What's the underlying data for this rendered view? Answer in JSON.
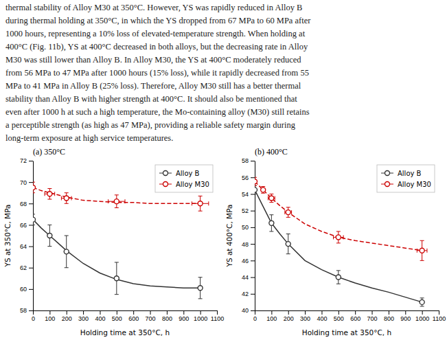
{
  "text_lines": [
    "thermal stability of Alloy M30 at 350°C. However, YS was rapidly reduced in Alloy B",
    "during thermal holding at 350°C, in which the YS dropped from 67 MPa to 60 MPa after",
    "1000 hours, representing a 10% loss of elevated-temperature strength. When holding at",
    "400°C (Fig. 11b), YS at 400°C decreased in both alloys, but the decreasing rate in Alloy",
    "M30 was still lower than Alloy B. In Alloy M30, the YS at 400°C moderately reduced",
    "from 56 MPa to 47 MPa after 1000 hours (15% loss), while it rapidly decreased from 55",
    "MPa to 41 MPa in Alloy B (25% loss). Therefore, Alloy M30 still has a better thermal",
    "stability than Alloy B with higher strength at 400°C. It should also be mentioned that",
    "even after 1000 h at such a high temperature, the Mo-containing alloy (M30) still retains",
    "a perceptible strength (as high as 47 MPa), providing a reliable safety margin during",
    "long-term exposure at high service temperatures."
  ],
  "chart_data": [
    {
      "type": "line",
      "title": "(a) 350°C",
      "x_label": "Holding time at 350°C, h",
      "y_label": "YS at 350°C, MPa",
      "xlim": [
        0,
        1100
      ],
      "xticks": [
        0,
        100,
        200,
        300,
        400,
        500,
        600,
        700,
        800,
        900,
        1000,
        1100
      ],
      "ylim": [
        58,
        72
      ],
      "yticks": [
        58,
        60,
        62,
        64,
        66,
        68,
        70,
        72
      ],
      "grid": false,
      "legend": "upper right",
      "series": [
        {
          "type": "line",
          "color": "#333333",
          "line_style": "solid",
          "x": [
            0,
            50,
            100,
            150,
            200,
            300,
            400,
            500,
            600,
            700,
            800,
            900,
            1000
          ],
          "values": [
            66.5,
            65.7,
            65.0,
            64.3,
            63.6,
            62.4,
            61.5,
            60.9,
            60.5,
            60.3,
            60.2,
            60.1,
            60.1
          ]
        },
        {
          "type": "line",
          "color": "#cc0000",
          "line_style": "dashed",
          "x": [
            0,
            50,
            100,
            150,
            200,
            300,
            400,
            500,
            600,
            700,
            800,
            900,
            1000
          ],
          "values": [
            69.5,
            69.2,
            69.0,
            68.8,
            68.6,
            68.3,
            68.2,
            68.1,
            68.1,
            68.0,
            68.0,
            68.0,
            68.0
          ]
        },
        {
          "type": "scatter",
          "name": "Alloy B",
          "color": "#333333",
          "marker": "circle",
          "x": [
            0,
            100,
            200,
            500,
            1000
          ],
          "values": [
            66.5,
            65.0,
            63.5,
            61.0,
            60.1
          ],
          "yerr": [
            0.5,
            1.0,
            1.5,
            1.5,
            1.0
          ]
        },
        {
          "type": "scatter",
          "name": "Alloy M30",
          "color": "#cc0000",
          "marker": "circle",
          "x": [
            0,
            100,
            200,
            500,
            1000
          ],
          "values": [
            69.5,
            68.9,
            68.5,
            68.2,
            68.0
          ],
          "yerr": [
            0.5,
            0.5,
            0.5,
            0.6,
            0.7
          ],
          "xerr": [
            0,
            30,
            30,
            50,
            50
          ]
        }
      ]
    },
    {
      "type": "line",
      "title": "(b) 400°C",
      "x_label": "Holding time at 350°C, h",
      "y_label": "YS at 400°C, MPa",
      "xlim": [
        0,
        1100
      ],
      "xticks": [
        0,
        100,
        200,
        300,
        400,
        500,
        600,
        700,
        800,
        900,
        1000,
        1100
      ],
      "ylim": [
        40,
        58
      ],
      "yticks": [
        40,
        42,
        44,
        46,
        48,
        50,
        52,
        54,
        56,
        58
      ],
      "grid": false,
      "legend": "upper right",
      "series": [
        {
          "type": "line",
          "color": "#333333",
          "line_style": "solid",
          "x": [
            0,
            50,
            100,
            150,
            200,
            300,
            400,
            500,
            600,
            700,
            800,
            900,
            1000
          ],
          "values": [
            54.5,
            52.5,
            50.5,
            49.2,
            48.0,
            46.0,
            44.9,
            44.0,
            43.3,
            42.7,
            42.2,
            41.6,
            41.0
          ]
        },
        {
          "type": "line",
          "color": "#cc0000",
          "line_style": "dashed",
          "x": [
            0,
            50,
            100,
            150,
            200,
            300,
            400,
            500,
            600,
            700,
            800,
            900,
            1000
          ],
          "values": [
            55.5,
            54.5,
            53.5,
            52.6,
            51.8,
            50.4,
            49.5,
            48.8,
            48.4,
            48.1,
            47.8,
            47.5,
            47.2
          ]
        },
        {
          "type": "scatter",
          "name": "Alloy B",
          "color": "#333333",
          "marker": "circle",
          "x": [
            0,
            100,
            200,
            500,
            1000
          ],
          "values": [
            54.5,
            50.5,
            48.0,
            44.0,
            41.0
          ],
          "yerr": [
            0.5,
            1.0,
            1.2,
            0.8,
            0.5
          ]
        },
        {
          "type": "scatter",
          "name": "Alloy M30",
          "color": "#cc0000",
          "marker": "circle",
          "x": [
            0,
            50,
            100,
            200,
            500,
            1000
          ],
          "values": [
            55.5,
            54.5,
            53.5,
            51.8,
            48.8,
            47.2
          ],
          "yerr": [
            0.5,
            0.4,
            0.5,
            0.6,
            0.7,
            1.2
          ],
          "xerr": [
            0,
            10,
            20,
            20,
            30,
            30
          ]
        }
      ]
    }
  ]
}
